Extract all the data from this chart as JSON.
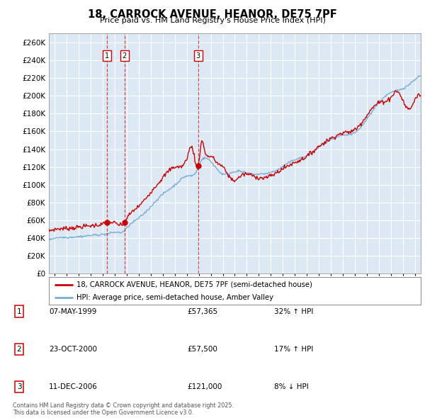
{
  "title": "18, CARROCK AVENUE, HEANOR, DE75 7PF",
  "subtitle": "Price paid vs. HM Land Registry's House Price Index (HPI)",
  "ylabel_ticks": [
    0,
    20000,
    40000,
    60000,
    80000,
    100000,
    120000,
    140000,
    160000,
    180000,
    200000,
    220000,
    240000,
    260000
  ],
  "ylim": [
    0,
    270000
  ],
  "xlim": [
    1994.5,
    2025.5
  ],
  "purchases": [
    {
      "year": 1999.35,
      "price": 57365,
      "label": "1"
    },
    {
      "year": 2000.81,
      "price": 57500,
      "label": "2"
    },
    {
      "year": 2006.95,
      "price": 121000,
      "label": "3"
    }
  ],
  "vline_color": "#cc0000",
  "hpi_color": "#7aadd4",
  "price_color": "#cc0000",
  "chart_bg": "#dce9f5",
  "legend_entries": [
    "18, CARROCK AVENUE, HEANOR, DE75 7PF (semi-detached house)",
    "HPI: Average price, semi-detached house, Amber Valley"
  ],
  "table_rows": [
    {
      "num": "1",
      "date": "07-MAY-1999",
      "price": "£57,365",
      "change": "32% ↑ HPI"
    },
    {
      "num": "2",
      "date": "23-OCT-2000",
      "price": "£57,500",
      "change": "17% ↑ HPI"
    },
    {
      "num": "3",
      "date": "11-DEC-2006",
      "price": "£121,000",
      "change": "8% ↓ HPI"
    }
  ],
  "footnote": "Contains HM Land Registry data © Crown copyright and database right 2025.\nThis data is licensed under the Open Government Licence v3.0.",
  "background_color": "#ffffff",
  "grid_color": "#ffffff"
}
